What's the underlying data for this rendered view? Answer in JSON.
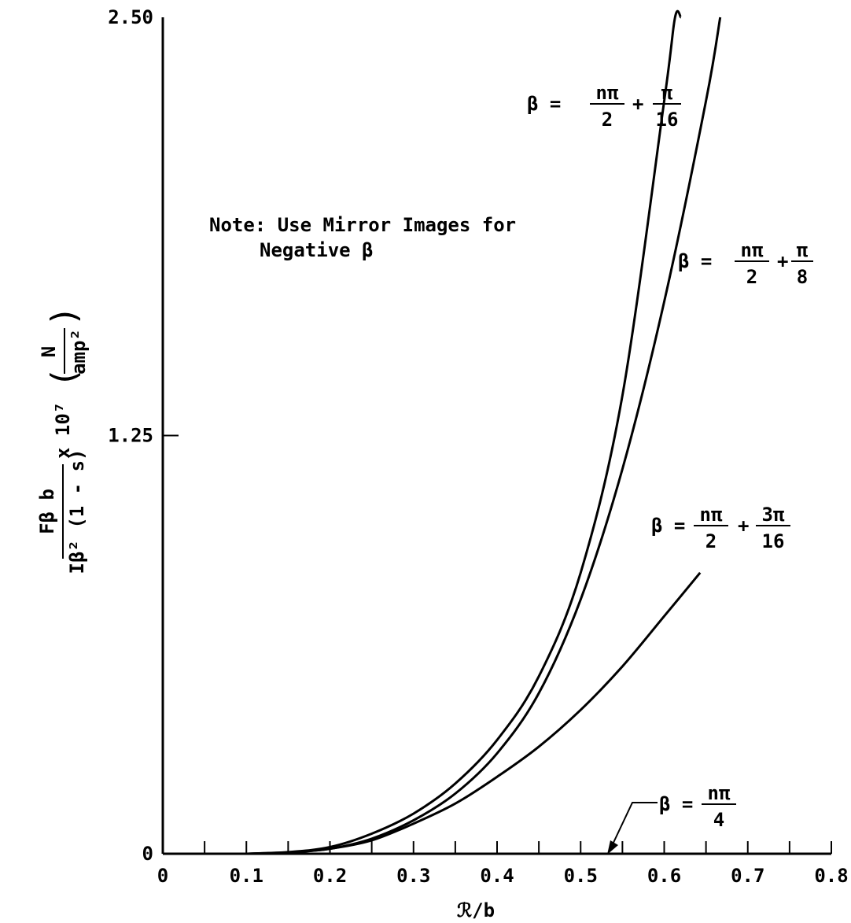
{
  "chart_data": {
    "type": "line",
    "xlabel": "ℛ/b",
    "ylabel": {
      "numerator": "Fβ b",
      "denominator": "Iβ² (1 - s)",
      "multiplier": "x 10⁷",
      "unit_numerator": "N",
      "unit_denominator": "amp²"
    },
    "xlim": [
      0,
      0.8
    ],
    "ylim": [
      0,
      2.5
    ],
    "x_tick_labels": [
      "0",
      "0.1",
      "0.2",
      "0.3",
      "0.4",
      "0.5",
      "0.6",
      "0.7",
      "0.8"
    ],
    "x_tick_values": [
      0,
      0.1,
      0.2,
      0.3,
      0.4,
      0.5,
      0.6,
      0.7,
      0.8
    ],
    "y_tick_labels": [
      "0",
      "1.25",
      "2.50"
    ],
    "y_tick_values": [
      0,
      1.25,
      2.5
    ],
    "grid": false,
    "note": {
      "line1": "Note:  Use Mirror Images for",
      "line2": "Negative β"
    },
    "series": [
      {
        "label": {
          "prefix": "β =",
          "frac1_num": "nπ",
          "frac1_den": "2",
          "op": "+",
          "frac2_num": "π",
          "frac2_den": "16"
        },
        "x": [
          0.1,
          0.15,
          0.2,
          0.25,
          0.3,
          0.35,
          0.4,
          0.45,
          0.5,
          0.55,
          0.6,
          0.613,
          0.62
        ],
        "y": [
          0.0,
          0.005,
          0.02,
          0.06,
          0.12,
          0.21,
          0.34,
          0.53,
          0.84,
          1.37,
          2.25,
          2.5,
          2.5
        ]
      },
      {
        "label": {
          "prefix": "β =",
          "frac1_num": "nπ",
          "frac1_den": "2",
          "op": "+",
          "frac2_num": "π",
          "frac2_den": "8"
        },
        "x": [
          0.1,
          0.15,
          0.2,
          0.25,
          0.3,
          0.35,
          0.4,
          0.45,
          0.5,
          0.55,
          0.6,
          0.65,
          0.667
        ],
        "y": [
          0.0,
          0.004,
          0.015,
          0.045,
          0.1,
          0.18,
          0.3,
          0.48,
          0.76,
          1.15,
          1.65,
          2.25,
          2.5
        ]
      },
      {
        "label": {
          "prefix": "β =",
          "frac1_num": "nπ",
          "frac1_den": "2",
          "op": "+",
          "frac2_num": "3π",
          "frac2_den": "16"
        },
        "x": [
          0.1,
          0.15,
          0.2,
          0.25,
          0.3,
          0.35,
          0.4,
          0.45,
          0.5,
          0.55,
          0.6,
          0.643
        ],
        "y": [
          0.0,
          0.004,
          0.015,
          0.04,
          0.09,
          0.15,
          0.23,
          0.32,
          0.43,
          0.56,
          0.71,
          0.84
        ]
      },
      {
        "label": {
          "prefix": "β =",
          "frac1_num": "nπ",
          "frac1_den": "4"
        },
        "x": [
          0.0,
          0.8
        ],
        "y": [
          0.0,
          0.0
        ]
      }
    ]
  }
}
